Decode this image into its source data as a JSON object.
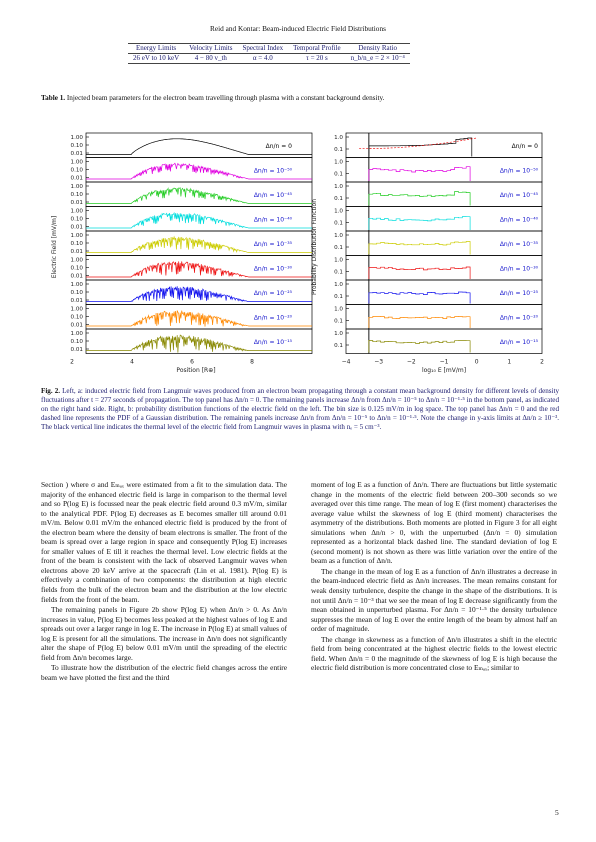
{
  "header": {
    "running_title": "Reid and Kontar: Beam-induced Electric Field Distributions"
  },
  "param_table": {
    "headers": [
      "Energy Limits",
      "Velocity Limits",
      "Spectral Index",
      "Temporal Profile",
      "Density Ratio"
    ],
    "values": [
      "26 eV to 10 keV",
      "4 − 80 v_th",
      "α = 4.0",
      "τ = 20 s",
      "n_b/n_e = 2 × 10⁻⁴"
    ]
  },
  "table_caption": {
    "label": "Table 1.",
    "text": " Injected beam parameters for the electron beam travelling through plasma with a constant background density."
  },
  "figure": {
    "colors": [
      "#000000",
      "#e000e0",
      "#22cc22",
      "#00dddd",
      "#cccc00",
      "#ee1111",
      "#1111ee",
      "#ff8800",
      "#888800"
    ],
    "panel_labels": [
      "Δn/n = 0",
      "Δn/n = 10⁻⁵⁰",
      "Δn/n = 10⁻⁴⁵",
      "Δn/n = 10⁻⁴⁰",
      "Δn/n = 10⁻³⁵",
      "Δn/n = 10⁻³⁰",
      "Δn/n = 10⁻²⁵",
      "Δn/n = 10⁻²⁰",
      "Δn/n = 10⁻¹⁵"
    ],
    "left": {
      "ylabel": "Electric Field [mV/m]",
      "xlabel": "Position [R⊕]",
      "yticks": [
        "1.00",
        "0.10",
        "0.01"
      ],
      "xticks": [
        "2",
        "4",
        "6",
        "8"
      ]
    },
    "right": {
      "ylabel": "Probability Distribution Function",
      "xlabel": "log₁₀ E [mV/m]",
      "yticks": [
        "1.0",
        "0.1"
      ],
      "xticks": [
        "−4",
        "−3",
        "−2",
        "−1",
        "0",
        "1",
        "2"
      ]
    }
  },
  "figure_caption": {
    "label": "Fig. 2.",
    "text": " Left, a: induced electric field from Langmuir waves produced from an electron beam propagating through a constant mean background density for different levels of density fluctuations after t = 277 seconds of propagation. The top panel has Δn/n = 0. The remaining panels increase Δn/n from Δn/n = 10⁻⁵ to Δn/n = 10⁻¹·⁵ in the bottom panel, as indicated on the right hand side. Right, b: probability distribution functions of the electric field on the left. The bin size is 0.125 mV/m in log space. The top panel has Δn/n = 0 and the red dashed line represents the PDF of a Gaussian distribution. The remaining panels increase Δn/n from Δn/n = 10⁻⁵ to Δn/n = 10⁻¹·⁵. Note the change in y-axis limits at Δn/n ≥ 10⁻³. The black vertical line indicates the thermal level of the electric field from Langmuir waves in plasma with nₑ = 5 cm⁻³."
  },
  "body_left": [
    "Section ) where σ and Eₘₐₓ were estimated from a fit to the simulation data. The majority of the enhanced electric field is large in comparison to the thermal level and so P(log E) is focussed near the peak electric field around 0.3 mV/m, similar to the analytical PDF. P(log E) decreases as E becomes smaller till around 0.01 mV/m. Below 0.01 mV/m the enhanced electric field is produced by the front of the electron beam where the density of beam electrons is smaller. The front of the beam is spread over a large region in space and consequently P(log E) increases for smaller values of E till it reaches the thermal level. Low electric fields at the front of the beam is consistent with the lack of observed Langmuir waves when electrons above 20 keV arrive at the spacecraft (Lin et al. 1981). P(log E) is effectively a combination of two components: the distribution at high electric fields from the bulk of the electron beam and the distribution at the low electric fields from the front of the beam.",
    "The remaining panels in Figure 2b show P(log E) when Δn/n > 0. As Δn/n increases in value, P(log E) becomes less peaked at the highest values of log E and spreads out over a larger range in log E. The increase in P(log E) at small values of log E is present for all the simulations. The increase in Δn/n does not significantly alter the shape of P(log E) below 0.01 mV/m until the spreading of the electric field from Δn/n becomes large.",
    "To illustrate how the distribution of the electric field changes across the entire beam we have plotted the first and the third"
  ],
  "body_right": [
    "moment of log E as a function of Δn/n. There are fluctuations but little systematic change in the moments of the electric field between 200–300 seconds so we averaged over this time range. The mean of log E (first moment) characterises the average value whilst the skewness of log E (third moment) characterises the asymmetry of the distributions. Both moments are plotted in Figure 3 for all eight simulations when Δn/n > 0, with the unperturbed (Δn/n = 0) simulation represented as a horizontal black dashed line. The standard deviation of log E (second moment) is not shown as there was little variation over the entire of the beam as a function of Δn/n.",
    "The change in the mean of log E as a function of Δn/n illustrates a decrease in the beam-induced electric field as Δn/n increases. The mean remains constant for weak density turbulence, despite the change in the shape of the distributions. It is not until Δn/n = 10⁻³ that we see the mean of log E decrease significantly from the mean obtained in unperturbed plasma. For Δn/n = 10⁻¹·⁵ the density turbulence suppresses the mean of log E over the entire length of the beam by almost half an order of magnitude.",
    "The change in skewness as a function of Δn/n illustrates a shift in the electric field from being concentrated at the highest electric fields to the lowest electric field. When Δn/n = 0 the magnitude of the skewness of log E is high because the electric field distribution is more concentrated close to Eₘₐₓ; similar to"
  ],
  "page_number": "5"
}
